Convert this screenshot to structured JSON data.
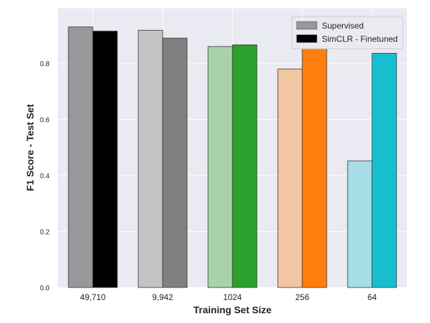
{
  "chart_data": {
    "type": "bar",
    "title": "",
    "xlabel": "Training Set Size",
    "ylabel": "F1 Score - Test Set",
    "categories": [
      "49,710",
      "9,942",
      "1024",
      "256",
      "64"
    ],
    "ylim": [
      0,
      1.0
    ],
    "yticks": [
      0.0,
      0.2,
      0.4,
      0.6,
      0.8
    ],
    "ytick_labels": [
      "0.0",
      "0.2",
      "0.4",
      "0.6",
      "0.8"
    ],
    "grid": true,
    "legend_position": "top-right",
    "series": [
      {
        "name": "Supervised",
        "values": [
          0.93,
          0.918,
          0.86,
          0.78,
          0.452
        ],
        "colors": [
          "#98989a",
          "#c4c4c6",
          "#a8d3a8",
          "#f2c6a2",
          "#a6dde6"
        ],
        "legend_color": "#98989a"
      },
      {
        "name": "SimCLR - Finetuned",
        "values": [
          0.915,
          0.89,
          0.866,
          0.852,
          0.836
        ],
        "colors": [
          "#000000",
          "#808080",
          "#2ca02c",
          "#ff7f0e",
          "#17becf"
        ],
        "legend_color": "#000000"
      }
    ],
    "background_color": "#eaeaf2",
    "grid_color": "#ffffff"
  }
}
